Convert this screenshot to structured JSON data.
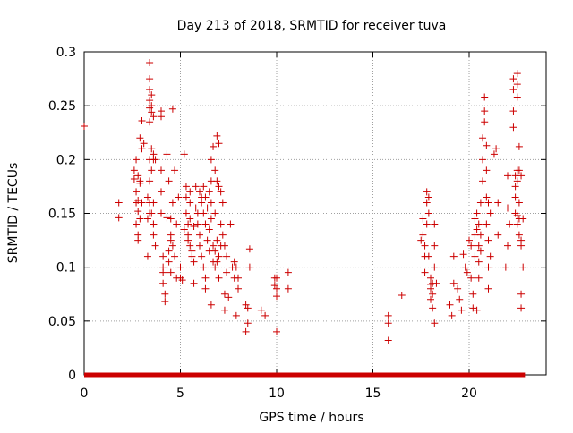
{
  "chart_data": {
    "type": "scatter",
    "title": "Day 213 of 2018, SRMTID for receiver tuva",
    "xlabel": "GPS time / hours",
    "ylabel": "SRMTID / TECUs",
    "xlim": [
      0,
      24
    ],
    "ylim": [
      0,
      0.3
    ],
    "xticks": [
      "0",
      "5",
      "10",
      "15",
      "20"
    ],
    "yticks": [
      "0",
      "0.05",
      "0.1",
      "0.15",
      "0.2",
      "0.25",
      "0.3"
    ],
    "grid": true,
    "marker": "plus",
    "series_color": "#cc0000",
    "zero_baseline": {
      "y": 0,
      "x_from": 0,
      "x_to": 22.9
    },
    "points": [
      [
        0.0,
        0.231
      ],
      [
        1.8,
        0.16
      ],
      [
        1.8,
        0.146
      ],
      [
        2.6,
        0.182
      ],
      [
        2.6,
        0.19
      ],
      [
        2.7,
        0.2
      ],
      [
        2.7,
        0.17
      ],
      [
        2.7,
        0.16
      ],
      [
        2.7,
        0.14
      ],
      [
        2.8,
        0.185
      ],
      [
        2.8,
        0.162
      ],
      [
        2.8,
        0.152
      ],
      [
        2.8,
        0.13
      ],
      [
        2.8,
        0.125
      ],
      [
        2.9,
        0.145
      ],
      [
        2.9,
        0.178
      ],
      [
        2.9,
        0.18
      ],
      [
        2.9,
        0.22
      ],
      [
        3.0,
        0.236
      ],
      [
        3.0,
        0.21
      ],
      [
        3.0,
        0.16
      ],
      [
        3.1,
        0.215
      ],
      [
        3.3,
        0.165
      ],
      [
        3.3,
        0.145
      ],
      [
        3.3,
        0.11
      ],
      [
        3.4,
        0.29
      ],
      [
        3.4,
        0.275
      ],
      [
        3.4,
        0.265
      ],
      [
        3.4,
        0.255
      ],
      [
        3.4,
        0.248
      ],
      [
        3.4,
        0.235
      ],
      [
        3.4,
        0.2
      ],
      [
        3.4,
        0.18
      ],
      [
        3.4,
        0.16
      ],
      [
        3.4,
        0.15
      ],
      [
        3.5,
        0.26
      ],
      [
        3.5,
        0.25
      ],
      [
        3.5,
        0.244
      ],
      [
        3.5,
        0.21
      ],
      [
        3.5,
        0.19
      ],
      [
        3.5,
        0.15
      ],
      [
        3.6,
        0.24
      ],
      [
        3.6,
        0.205
      ],
      [
        3.6,
        0.2
      ],
      [
        3.6,
        0.16
      ],
      [
        3.6,
        0.14
      ],
      [
        3.6,
        0.13
      ],
      [
        3.7,
        0.12
      ],
      [
        3.7,
        0.2
      ],
      [
        4.0,
        0.245
      ],
      [
        4.0,
        0.24
      ],
      [
        4.0,
        0.19
      ],
      [
        4.0,
        0.17
      ],
      [
        4.0,
        0.15
      ],
      [
        4.1,
        0.11
      ],
      [
        4.1,
        0.1
      ],
      [
        4.1,
        0.095
      ],
      [
        4.1,
        0.085
      ],
      [
        4.2,
        0.075
      ],
      [
        4.2,
        0.068
      ],
      [
        4.3,
        0.205
      ],
      [
        4.3,
        0.146
      ],
      [
        4.4,
        0.18
      ],
      [
        4.4,
        0.115
      ],
      [
        4.4,
        0.105
      ],
      [
        4.5,
        0.145
      ],
      [
        4.5,
        0.13
      ],
      [
        4.5,
        0.125
      ],
      [
        4.5,
        0.095
      ],
      [
        4.6,
        0.247
      ],
      [
        4.6,
        0.16
      ],
      [
        4.6,
        0.12
      ],
      [
        4.7,
        0.19
      ],
      [
        4.7,
        0.11
      ],
      [
        4.8,
        0.09
      ],
      [
        4.8,
        0.14
      ],
      [
        4.9,
        0.165
      ],
      [
        5.0,
        0.1
      ],
      [
        5.0,
        0.09
      ],
      [
        5.1,
        0.088
      ],
      [
        5.2,
        0.205
      ],
      [
        5.2,
        0.135
      ],
      [
        5.3,
        0.175
      ],
      [
        5.3,
        0.165
      ],
      [
        5.3,
        0.15
      ],
      [
        5.4,
        0.14
      ],
      [
        5.4,
        0.13
      ],
      [
        5.4,
        0.125
      ],
      [
        5.5,
        0.17
      ],
      [
        5.5,
        0.16
      ],
      [
        5.5,
        0.145
      ],
      [
        5.5,
        0.12
      ],
      [
        5.6,
        0.115
      ],
      [
        5.6,
        0.11
      ],
      [
        5.7,
        0.138
      ],
      [
        5.7,
        0.105
      ],
      [
        5.7,
        0.085
      ],
      [
        5.8,
        0.175
      ],
      [
        5.8,
        0.155
      ],
      [
        5.9,
        0.15
      ],
      [
        5.9,
        0.14
      ],
      [
        6.0,
        0.17
      ],
      [
        6.0,
        0.13
      ],
      [
        6.0,
        0.12
      ],
      [
        6.1,
        0.165
      ],
      [
        6.1,
        0.16
      ],
      [
        6.1,
        0.11
      ],
      [
        6.2,
        0.175
      ],
      [
        6.2,
        0.15
      ],
      [
        6.2,
        0.1
      ],
      [
        6.3,
        0.165
      ],
      [
        6.3,
        0.14
      ],
      [
        6.3,
        0.09
      ],
      [
        6.3,
        0.08
      ],
      [
        6.4,
        0.155
      ],
      [
        6.4,
        0.125
      ],
      [
        6.5,
        0.17
      ],
      [
        6.5,
        0.135
      ],
      [
        6.5,
        0.115
      ],
      [
        6.6,
        0.2
      ],
      [
        6.6,
        0.18
      ],
      [
        6.6,
        0.16
      ],
      [
        6.6,
        0.145
      ],
      [
        6.7,
        0.212
      ],
      [
        6.7,
        0.12
      ],
      [
        6.7,
        0.105
      ],
      [
        6.8,
        0.19
      ],
      [
        6.8,
        0.15
      ],
      [
        6.8,
        0.115
      ],
      [
        6.8,
        0.1
      ],
      [
        6.9,
        0.222
      ],
      [
        6.9,
        0.18
      ],
      [
        6.9,
        0.125
      ],
      [
        6.9,
        0.105
      ],
      [
        7.0,
        0.215
      ],
      [
        7.0,
        0.175
      ],
      [
        7.0,
        0.11
      ],
      [
        7.0,
        0.09
      ],
      [
        7.1,
        0.17
      ],
      [
        7.1,
        0.14
      ],
      [
        7.1,
        0.12
      ],
      [
        7.2,
        0.16
      ],
      [
        7.2,
        0.13
      ],
      [
        7.3,
        0.12
      ],
      [
        7.3,
        0.075
      ],
      [
        7.4,
        0.11
      ],
      [
        7.4,
        0.095
      ],
      [
        7.5,
        0.072
      ],
      [
        7.6,
        0.14
      ],
      [
        7.7,
        0.1
      ],
      [
        7.8,
        0.105
      ],
      [
        7.8,
        0.09
      ],
      [
        7.9,
        0.1
      ],
      [
        8.0,
        0.08
      ],
      [
        8.0,
        0.09
      ],
      [
        6.6,
        0.065
      ],
      [
        7.3,
        0.06
      ],
      [
        7.9,
        0.055
      ],
      [
        8.4,
        0.065
      ],
      [
        8.5,
        0.062
      ],
      [
        8.5,
        0.048
      ],
      [
        8.4,
        0.04
      ],
      [
        8.6,
        0.117
      ],
      [
        8.6,
        0.1
      ],
      [
        9.2,
        0.06
      ],
      [
        9.4,
        0.055
      ],
      [
        9.9,
        0.09
      ],
      [
        9.9,
        0.083
      ],
      [
        10.0,
        0.09
      ],
      [
        10.0,
        0.08
      ],
      [
        10.0,
        0.073
      ],
      [
        10.0,
        0.04
      ],
      [
        10.6,
        0.095
      ],
      [
        10.6,
        0.08
      ],
      [
        15.8,
        0.055
      ],
      [
        15.8,
        0.048
      ],
      [
        15.8,
        0.032
      ],
      [
        16.5,
        0.074
      ],
      [
        17.5,
        0.125
      ],
      [
        17.6,
        0.145
      ],
      [
        17.6,
        0.13
      ],
      [
        17.7,
        0.12
      ],
      [
        17.7,
        0.11
      ],
      [
        17.7,
        0.095
      ],
      [
        17.8,
        0.17
      ],
      [
        17.8,
        0.16
      ],
      [
        17.8,
        0.14
      ],
      [
        17.9,
        0.165
      ],
      [
        17.9,
        0.15
      ],
      [
        17.9,
        0.11
      ],
      [
        18.0,
        0.09
      ],
      [
        18.0,
        0.08
      ],
      [
        18.0,
        0.07
      ],
      [
        18.1,
        0.085
      ],
      [
        18.1,
        0.075
      ],
      [
        18.1,
        0.062
      ],
      [
        18.2,
        0.14
      ],
      [
        18.2,
        0.12
      ],
      [
        18.2,
        0.1
      ],
      [
        18.2,
        0.048
      ],
      [
        18.0,
        0.084
      ],
      [
        18.3,
        0.085
      ],
      [
        19.0,
        0.065
      ],
      [
        19.1,
        0.055
      ],
      [
        19.2,
        0.11
      ],
      [
        19.2,
        0.085
      ],
      [
        19.4,
        0.08
      ],
      [
        19.5,
        0.07
      ],
      [
        19.6,
        0.06
      ],
      [
        19.7,
        0.112
      ],
      [
        19.8,
        0.1
      ],
      [
        19.9,
        0.095
      ],
      [
        20.0,
        0.125
      ],
      [
        20.1,
        0.12
      ],
      [
        20.1,
        0.09
      ],
      [
        20.2,
        0.075
      ],
      [
        20.2,
        0.062
      ],
      [
        20.3,
        0.145
      ],
      [
        20.3,
        0.13
      ],
      [
        20.3,
        0.11
      ],
      [
        20.4,
        0.15
      ],
      [
        20.4,
        0.135
      ],
      [
        20.4,
        0.06
      ],
      [
        20.5,
        0.14
      ],
      [
        20.5,
        0.12
      ],
      [
        20.5,
        0.105
      ],
      [
        20.5,
        0.09
      ],
      [
        20.6,
        0.16
      ],
      [
        20.6,
        0.13
      ],
      [
        20.6,
        0.115
      ],
      [
        20.7,
        0.22
      ],
      [
        20.7,
        0.2
      ],
      [
        20.7,
        0.18
      ],
      [
        20.8,
        0.258
      ],
      [
        20.8,
        0.245
      ],
      [
        20.8,
        0.235
      ],
      [
        20.9,
        0.213
      ],
      [
        20.9,
        0.19
      ],
      [
        20.9,
        0.165
      ],
      [
        20.9,
        0.14
      ],
      [
        21.0,
        0.16
      ],
      [
        21.0,
        0.125
      ],
      [
        21.0,
        0.1
      ],
      [
        21.0,
        0.08
      ],
      [
        21.1,
        0.15
      ],
      [
        21.1,
        0.11
      ],
      [
        21.3,
        0.205
      ],
      [
        21.4,
        0.21
      ],
      [
        21.5,
        0.16
      ],
      [
        21.5,
        0.13
      ],
      [
        22.0,
        0.185
      ],
      [
        22.0,
        0.155
      ],
      [
        22.0,
        0.12
      ],
      [
        22.1,
        0.14
      ],
      [
        22.3,
        0.275
      ],
      [
        22.3,
        0.265
      ],
      [
        22.3,
        0.245
      ],
      [
        22.3,
        0.23
      ],
      [
        22.4,
        0.185
      ],
      [
        22.4,
        0.175
      ],
      [
        22.4,
        0.165
      ],
      [
        22.4,
        0.15
      ],
      [
        22.5,
        0.28
      ],
      [
        22.5,
        0.27
      ],
      [
        22.5,
        0.258
      ],
      [
        22.5,
        0.19
      ],
      [
        22.5,
        0.18
      ],
      [
        22.5,
        0.14
      ],
      [
        22.6,
        0.212
      ],
      [
        22.6,
        0.19
      ],
      [
        22.6,
        0.16
      ],
      [
        22.6,
        0.145
      ],
      [
        22.6,
        0.13
      ],
      [
        22.7,
        0.185
      ],
      [
        22.7,
        0.125
      ],
      [
        22.7,
        0.12
      ],
      [
        22.7,
        0.075
      ],
      [
        22.7,
        0.062
      ],
      [
        22.8,
        0.145
      ],
      [
        22.8,
        0.1
      ],
      [
        21.9,
        0.1
      ],
      [
        22.5,
        0.148
      ]
    ]
  }
}
